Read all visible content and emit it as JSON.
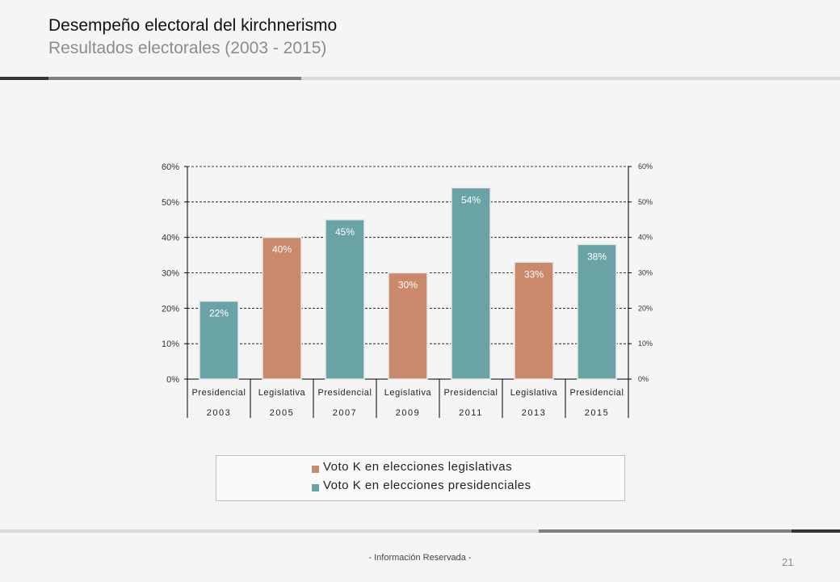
{
  "header": {
    "title": "Desempeño electoral del kirchnerismo",
    "subtitle": "Resultados electorales (2003 - 2015)"
  },
  "footer": {
    "text": "- Información Reservada -",
    "page_number": "21"
  },
  "colors": {
    "legislativas": "#c9896a",
    "presidenciales": "#6aa3a6",
    "dark_rule": "#333333",
    "gray_rule": "#808080",
    "light_rule": "#d9d9d9"
  },
  "legend": {
    "legislativas": "Voto K en elecciones legislativas",
    "presidenciales": "Voto K en elecciones presidenciales"
  },
  "chart_data": {
    "type": "bar",
    "categories": [
      {
        "election": "Presidencial",
        "year": "2003"
      },
      {
        "election": "Legislativa",
        "year": "2005"
      },
      {
        "election": "Presidencial",
        "year": "2007"
      },
      {
        "election": "Legislativa",
        "year": "2009"
      },
      {
        "election": "Presidencial",
        "year": "2011"
      },
      {
        "election": "Legislativa",
        "year": "2013"
      },
      {
        "election": "Presidencial",
        "year": "2015"
      }
    ],
    "values": [
      22,
      40,
      45,
      30,
      54,
      33,
      38
    ],
    "data_labels": [
      "22%",
      "40%",
      "45%",
      "30%",
      "54%",
      "33%",
      "38%"
    ],
    "series_by_bar": [
      "presidenciales",
      "legislativas",
      "presidenciales",
      "legislativas",
      "presidenciales",
      "legislativas",
      "presidenciales"
    ],
    "y_ticks": [
      "0%",
      "10%",
      "20%",
      "30%",
      "40%",
      "50%",
      "60%"
    ],
    "ylim": [
      0,
      60
    ],
    "secondary_y_axis": true,
    "grid": "dashed horizontal",
    "legend_position": "bottom"
  }
}
